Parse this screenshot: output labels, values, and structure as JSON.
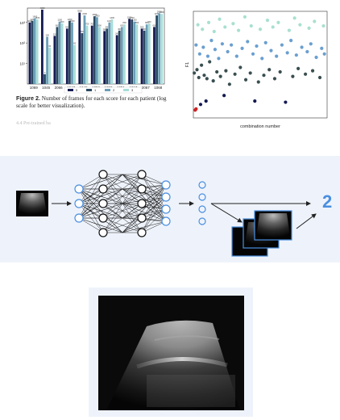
{
  "bar_chart": {
    "type": "bar",
    "categories": [
      "1069",
      "1045",
      "2066",
      "1047",
      "1048",
      "1052",
      "1050",
      "1051",
      "1017",
      "2067",
      "1068"
    ],
    "series": [
      {
        "name": "0",
        "values": [
          1000,
          4200,
          220,
          500,
          3000,
          700,
          380,
          240,
          1500,
          500,
          600
        ]
      },
      {
        "name": "1",
        "values": [
          1200,
          3,
          600,
          1200,
          300,
          2000,
          500,
          400,
          1400,
          400,
          2200
        ]
      },
      {
        "name": "2",
        "values": [
          1600,
          200,
          1100,
          1000,
          2200,
          1800,
          1000,
          600,
          1100,
          800,
          2800
        ]
      },
      {
        "name": "3",
        "values": [
          1400,
          60,
          900,
          80,
          700,
          600,
          1400,
          800,
          800,
          900,
          2600
        ]
      }
    ],
    "y_scale": "log",
    "ylim": [
      1,
      5000
    ],
    "ytick_labels": [
      "10¹",
      "10²",
      "10³"
    ],
    "legend": {
      "placement": "bottom"
    },
    "colors": [
      "#141a52",
      "#2a4a62",
      "#6a9fb8",
      "#a8ddd8"
    ]
  },
  "caption": {
    "label": "Figure 2.",
    "text": "Number of frames for each score for each patient (log scale for better visualization)."
  },
  "section_stub": "4.4 Pre-trained ba",
  "scatter_chart": {
    "type": "scatter",
    "xlabel": "combination number",
    "ylabel": "F1",
    "points": [
      {
        "x": 2,
        "y": 0.12,
        "c": "#cc2222"
      },
      {
        "x": 3,
        "y": 0.13,
        "c": "#cc2222"
      },
      {
        "x": 8,
        "y": 0.17,
        "c": "#141a52"
      },
      {
        "x": 14,
        "y": 0.2,
        "c": "#141a52"
      },
      {
        "x": 34,
        "y": 0.25,
        "c": "#141a52"
      },
      {
        "x": 68,
        "y": 0.2,
        "c": "#141a52"
      },
      {
        "x": 102,
        "y": 0.19,
        "c": "#141a52"
      },
      {
        "x": 1,
        "y": 0.45,
        "c": "#3a4e50"
      },
      {
        "x": 4,
        "y": 0.48,
        "c": "#3a4e50"
      },
      {
        "x": 6,
        "y": 0.41,
        "c": "#3a4e50"
      },
      {
        "x": 9,
        "y": 0.52,
        "c": "#3a4e50"
      },
      {
        "x": 12,
        "y": 0.43,
        "c": "#3a4e50"
      },
      {
        "x": 15,
        "y": 0.4,
        "c": "#3a4e50"
      },
      {
        "x": 18,
        "y": 0.55,
        "c": "#3a4e50"
      },
      {
        "x": 22,
        "y": 0.38,
        "c": "#3a4e50"
      },
      {
        "x": 26,
        "y": 0.46,
        "c": "#3a4e50"
      },
      {
        "x": 30,
        "y": 0.42,
        "c": "#3a4e50"
      },
      {
        "x": 36,
        "y": 0.47,
        "c": "#3a4e50"
      },
      {
        "x": 40,
        "y": 0.35,
        "c": "#3a4e50"
      },
      {
        "x": 46,
        "y": 0.44,
        "c": "#3a4e50"
      },
      {
        "x": 52,
        "y": 0.5,
        "c": "#3a4e50"
      },
      {
        "x": 58,
        "y": 0.39,
        "c": "#3a4e50"
      },
      {
        "x": 63,
        "y": 0.45,
        "c": "#3a4e50"
      },
      {
        "x": 72,
        "y": 0.37,
        "c": "#3a4e50"
      },
      {
        "x": 78,
        "y": 0.43,
        "c": "#3a4e50"
      },
      {
        "x": 84,
        "y": 0.48,
        "c": "#3a4e50"
      },
      {
        "x": 90,
        "y": 0.4,
        "c": "#3a4e50"
      },
      {
        "x": 96,
        "y": 0.46,
        "c": "#3a4e50"
      },
      {
        "x": 110,
        "y": 0.42,
        "c": "#3a4e50"
      },
      {
        "x": 116,
        "y": 0.49,
        "c": "#3a4e50"
      },
      {
        "x": 124,
        "y": 0.44,
        "c": "#3a4e50"
      },
      {
        "x": 132,
        "y": 0.47,
        "c": "#3a4e50"
      },
      {
        "x": 140,
        "y": 0.41,
        "c": "#3a4e50"
      },
      {
        "x": 3,
        "y": 0.7,
        "c": "#6a9fd0"
      },
      {
        "x": 7,
        "y": 0.62,
        "c": "#6a9fd0"
      },
      {
        "x": 11,
        "y": 0.68,
        "c": "#6a9fd0"
      },
      {
        "x": 16,
        "y": 0.6,
        "c": "#6a9fd0"
      },
      {
        "x": 20,
        "y": 0.74,
        "c": "#6a9fd0"
      },
      {
        "x": 24,
        "y": 0.66,
        "c": "#6a9fd0"
      },
      {
        "x": 28,
        "y": 0.58,
        "c": "#6a9fd0"
      },
      {
        "x": 32,
        "y": 0.71,
        "c": "#6a9fd0"
      },
      {
        "x": 38,
        "y": 0.64,
        "c": "#6a9fd0"
      },
      {
        "x": 42,
        "y": 0.7,
        "c": "#6a9fd0"
      },
      {
        "x": 48,
        "y": 0.6,
        "c": "#6a9fd0"
      },
      {
        "x": 54,
        "y": 0.67,
        "c": "#6a9fd0"
      },
      {
        "x": 60,
        "y": 0.73,
        "c": "#6a9fd0"
      },
      {
        "x": 66,
        "y": 0.62,
        "c": "#6a9fd0"
      },
      {
        "x": 70,
        "y": 0.69,
        "c": "#6a9fd0"
      },
      {
        "x": 76,
        "y": 0.58,
        "c": "#6a9fd0"
      },
      {
        "x": 80,
        "y": 0.72,
        "c": "#6a9fd0"
      },
      {
        "x": 86,
        "y": 0.65,
        "c": "#6a9fd0"
      },
      {
        "x": 92,
        "y": 0.6,
        "c": "#6a9fd0"
      },
      {
        "x": 98,
        "y": 0.7,
        "c": "#6a9fd0"
      },
      {
        "x": 104,
        "y": 0.63,
        "c": "#6a9fd0"
      },
      {
        "x": 108,
        "y": 0.74,
        "c": "#6a9fd0"
      },
      {
        "x": 114,
        "y": 0.61,
        "c": "#6a9fd0"
      },
      {
        "x": 120,
        "y": 0.68,
        "c": "#6a9fd0"
      },
      {
        "x": 126,
        "y": 0.64,
        "c": "#6a9fd0"
      },
      {
        "x": 130,
        "y": 0.71,
        "c": "#6a9fd0"
      },
      {
        "x": 136,
        "y": 0.59,
        "c": "#6a9fd0"
      },
      {
        "x": 142,
        "y": 0.67,
        "c": "#6a9fd0"
      },
      {
        "x": 145,
        "y": 0.62,
        "c": "#6a9fd0"
      },
      {
        "x": 5,
        "y": 0.88,
        "c": "#a8e0d0"
      },
      {
        "x": 10,
        "y": 0.84,
        "c": "#a8e0d0"
      },
      {
        "x": 17,
        "y": 0.9,
        "c": "#a8e0d0"
      },
      {
        "x": 23,
        "y": 0.82,
        "c": "#a8e0d0"
      },
      {
        "x": 29,
        "y": 0.93,
        "c": "#a8e0d0"
      },
      {
        "x": 35,
        "y": 0.86,
        "c": "#a8e0d0"
      },
      {
        "x": 44,
        "y": 0.89,
        "c": "#a8e0d0"
      },
      {
        "x": 50,
        "y": 0.83,
        "c": "#a8e0d0"
      },
      {
        "x": 57,
        "y": 0.95,
        "c": "#a8e0d0"
      },
      {
        "x": 64,
        "y": 0.87,
        "c": "#a8e0d0"
      },
      {
        "x": 74,
        "y": 0.84,
        "c": "#a8e0d0"
      },
      {
        "x": 82,
        "y": 0.92,
        "c": "#a8e0d0"
      },
      {
        "x": 88,
        "y": 0.86,
        "c": "#a8e0d0"
      },
      {
        "x": 94,
        "y": 0.9,
        "c": "#a8e0d0"
      },
      {
        "x": 106,
        "y": 0.83,
        "c": "#a8e0d0"
      },
      {
        "x": 112,
        "y": 0.94,
        "c": "#a8e0d0"
      },
      {
        "x": 118,
        "y": 0.88,
        "c": "#a8e0d0"
      },
      {
        "x": 128,
        "y": 0.85,
        "c": "#a8e0d0"
      },
      {
        "x": 134,
        "y": 0.91,
        "c": "#a8e0d0"
      },
      {
        "x": 144,
        "y": 0.87,
        "c": "#a8e0d0"
      }
    ],
    "xlim": [
      0,
      148
    ],
    "ylim": [
      0.05,
      1.0
    ]
  },
  "pipeline": {
    "score": "2",
    "accent": "#4a8fe0"
  }
}
